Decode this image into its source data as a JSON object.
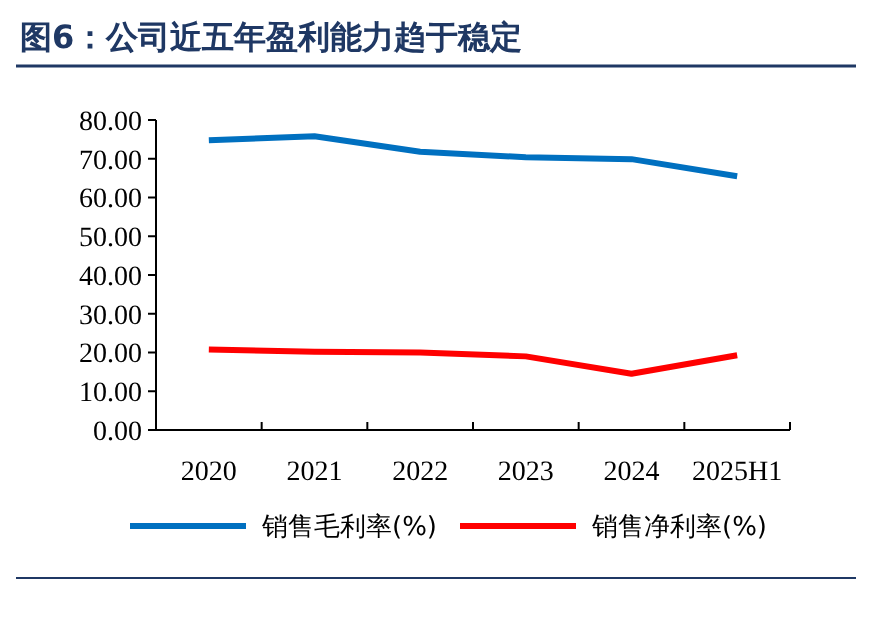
{
  "chart_data": {
    "type": "line",
    "title": "图6：公司近五年盈利能力趋于稳定",
    "categories": [
      "2020",
      "2021",
      "2022",
      "2023",
      "2024",
      "2025H1"
    ],
    "series": [
      {
        "name": "销售毛利率(%)",
        "color": "#0070c0",
        "values": [
          74.8,
          75.8,
          71.8,
          70.4,
          69.9,
          65.5
        ]
      },
      {
        "name": "销售净利率(%)",
        "color": "#ff0000",
        "values": [
          20.8,
          20.2,
          20.0,
          19.0,
          14.5,
          19.3
        ]
      }
    ],
    "ylim": [
      0,
      80
    ],
    "yticks": [
      {
        "value": 0,
        "label": "0.00"
      },
      {
        "value": 10,
        "label": "10.00"
      },
      {
        "value": 20,
        "label": "20.00"
      },
      {
        "value": 30,
        "label": "30.00"
      },
      {
        "value": 40,
        "label": "40.00"
      },
      {
        "value": 50,
        "label": "50.00"
      },
      {
        "value": 60,
        "label": "60.00"
      },
      {
        "value": 70,
        "label": "70.00"
      },
      {
        "value": 80,
        "label": "80.00"
      }
    ],
    "grid": false,
    "legend": "bottom",
    "marker": "none",
    "line_style": "solid"
  }
}
